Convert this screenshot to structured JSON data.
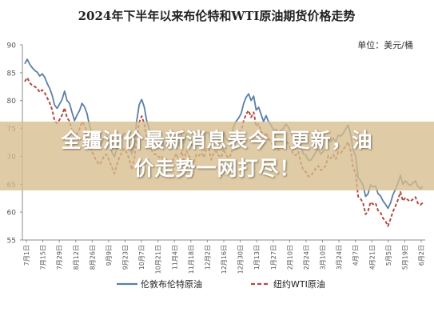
{
  "chart_data": {
    "type": "line",
    "title": "2024年下半年以来布伦特和WTI原油期货价格走势",
    "unit_label": "单位：美元/桶",
    "ylim": [
      55,
      90
    ],
    "y_ticks": [
      55,
      60,
      65,
      70,
      75,
      80,
      85,
      90
    ],
    "x_tick_labels": [
      "7月1日",
      "7月15日",
      "7月29日",
      "8月12日",
      "8月26日",
      "9月9日",
      "9月23日",
      "10月7日",
      "10月21日",
      "11月4日",
      "11月18日",
      "12月2日",
      "12月16日",
      "12月30日",
      "1月13日",
      "1月27日",
      "2月10日",
      "2月24日",
      "3月10日",
      "3月24日",
      "4月7日",
      "4月21日",
      "5月5日",
      "5月19日",
      "6月2日"
    ],
    "grid": false,
    "legend_position": "bottom",
    "series": [
      {
        "name": "伦敦布伦特原油",
        "color": "#5b7fa6",
        "style": "solid",
        "values": [
          86.6,
          87.4,
          86.5,
          85.9,
          85.4,
          85.1,
          84.4,
          84.8,
          84.2,
          83.1,
          82.2,
          81.0,
          79.2,
          78.6,
          79.4,
          80.2,
          81.7,
          80.0,
          79.5,
          77.9,
          76.4,
          77.4,
          78.2,
          79.5,
          78.9,
          77.7,
          75.6,
          74.1,
          73.1,
          72.4,
          71.8,
          72.4,
          73.5,
          73.6,
          72.1,
          70.8,
          69.9,
          71.4,
          72.7,
          73.4,
          74.2,
          73.3,
          72.3,
          70.4,
          72.2,
          76.4,
          79.3,
          80.2,
          78.9,
          76.4,
          74.9,
          74.0,
          73.4,
          73.2,
          72.7,
          73.0,
          71.6,
          72.3,
          72.0,
          71.8,
          72.8,
          73.5,
          71.9,
          73.9,
          72.4,
          74.0,
          73.3,
          72.1,
          71.9,
          73.4,
          73.2,
          73.6,
          72.8,
          74.3,
          74.3,
          72.3,
          73.7,
          73.8,
          73.0,
          72.7,
          74.4,
          73.1,
          72.7,
          73.4,
          75.4,
          76.3,
          76.9,
          77.7,
          79.5,
          80.6,
          81.2,
          80.0,
          80.8,
          78.3,
          78.8,
          77.5,
          76.2,
          77.3,
          76.2,
          75.6,
          74.7,
          74.9,
          74.0,
          74.7,
          75.0,
          75.8,
          75.2,
          74.3,
          73.3,
          73.1,
          73.8,
          71.7,
          70.4,
          70.2,
          69.3,
          69.3,
          70.0,
          70.8,
          71.3,
          70.4,
          70.9,
          71.3,
          73.0,
          72.6,
          73.3,
          72.5,
          73.8,
          73.6,
          74.1,
          74.9,
          75.6,
          73.9,
          71.1,
          70.1,
          66.2,
          65.6,
          64.8,
          62.8,
          63.3,
          64.9,
          64.5,
          64.7,
          63.3,
          62.9,
          62.0,
          61.4,
          60.7,
          61.6,
          63.1,
          64.1,
          65.2,
          66.6,
          65.0,
          65.6,
          65.1,
          64.8,
          65.2,
          65.6,
          64.6,
          64.2,
          64.6
        ]
      },
      {
        "name": "纽约WTI原油",
        "color": "#b04a43",
        "style": "dashed",
        "values": [
          83.4,
          84.1,
          83.2,
          82.7,
          82.5,
          82.2,
          81.5,
          81.9,
          81.4,
          80.5,
          79.6,
          78.4,
          76.4,
          75.9,
          76.6,
          77.4,
          78.7,
          76.9,
          76.3,
          74.6,
          73.1,
          74.1,
          74.9,
          76.2,
          75.6,
          74.3,
          72.4,
          70.9,
          69.9,
          69.1,
          68.5,
          69.2,
          70.2,
          70.3,
          69.2,
          68.1,
          66.9,
          68.5,
          69.8,
          70.6,
          71.4,
          70.6,
          69.5,
          67.6,
          69.4,
          73.5,
          76.1,
          77.2,
          75.9,
          73.4,
          72.0,
          71.1,
          70.4,
          70.3,
          69.8,
          70.1,
          68.6,
          69.4,
          69.1,
          68.9,
          69.8,
          70.5,
          68.9,
          70.9,
          69.4,
          71.0,
          70.2,
          69.0,
          68.9,
          70.4,
          70.1,
          70.6,
          69.8,
          71.4,
          71.3,
          69.4,
          70.8,
          70.9,
          70.1,
          69.8,
          71.4,
          70.2,
          69.7,
          70.4,
          72.3,
          73.1,
          73.8,
          74.6,
          76.4,
          77.6,
          78.2,
          77.0,
          77.9,
          75.4,
          75.8,
          74.6,
          73.2,
          74.3,
          73.2,
          72.6,
          71.7,
          71.9,
          71.1,
          71.7,
          72.0,
          72.8,
          72.2,
          71.3,
          70.3,
          70.2,
          70.8,
          68.8,
          67.5,
          67.2,
          66.4,
          66.5,
          67.1,
          67.9,
          68.3,
          67.5,
          67.9,
          68.3,
          70.1,
          69.6,
          70.3,
          69.5,
          70.8,
          70.6,
          71.2,
          71.9,
          72.6,
          71.0,
          68.0,
          66.9,
          62.8,
          62.4,
          61.6,
          59.6,
          60.2,
          61.8,
          61.4,
          61.6,
          60.3,
          59.9,
          58.9,
          58.4,
          57.5,
          58.7,
          60.1,
          61.1,
          62.2,
          63.6,
          62.0,
          62.6,
          62.2,
          61.9,
          62.3,
          62.7,
          61.6,
          61.3,
          61.7
        ]
      }
    ]
  },
  "overlay": {
    "headline_line1": "全疆油价最新消息表今日更新，油",
    "headline_line2": "价走势一网打尽！"
  }
}
